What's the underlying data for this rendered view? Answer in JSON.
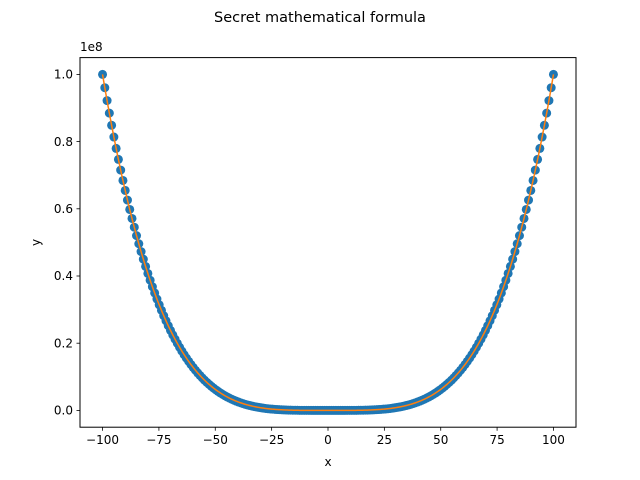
{
  "chart_data": {
    "type": "scatter",
    "title": "Secret mathematical formula",
    "xlabel": "x",
    "ylabel": "y",
    "y_offset_label": "1e8",
    "xlim": [
      -110,
      110
    ],
    "ylim": [
      -0.05,
      1.05
    ],
    "y_display_scale": "1e8",
    "x_ticks": [
      -100,
      -75,
      -50,
      -25,
      0,
      25,
      50,
      75,
      100
    ],
    "x_tick_labels": [
      "−100",
      "−75",
      "−50",
      "−25",
      "0",
      "25",
      "50",
      "75",
      "100"
    ],
    "y_ticks": [
      0.0,
      0.2,
      0.4,
      0.6,
      0.8,
      1.0
    ],
    "y_tick_labels": [
      "0.0",
      "0.2",
      "0.4",
      "0.6",
      "0.8",
      "1.0"
    ],
    "grid": false,
    "legend": "none",
    "series": [
      {
        "kind": "scatter",
        "color": "#1f77b4",
        "formula": "y = x^4",
        "x_range": [
          -100,
          100
        ],
        "n_points": 200
      },
      {
        "kind": "line",
        "color": "#ff7f0e",
        "formula": "y = x^4",
        "x_range": [
          -100,
          100
        ]
      }
    ]
  }
}
